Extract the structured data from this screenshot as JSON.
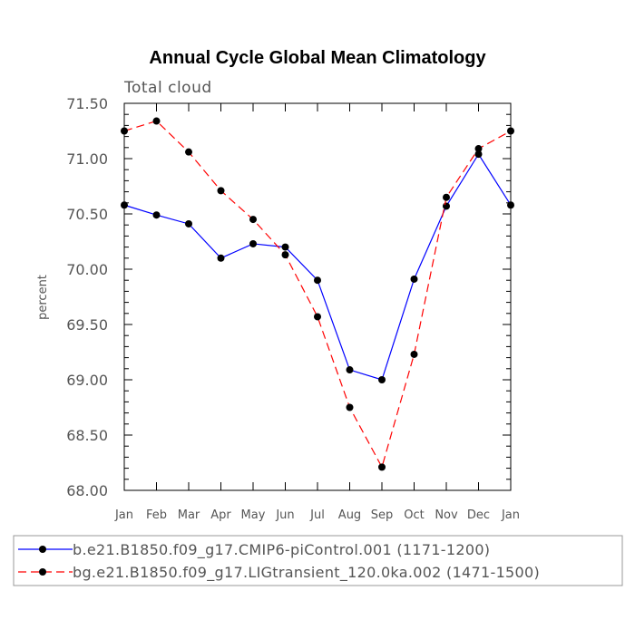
{
  "colors": {
    "series_1": "#0000ff",
    "series_2": "#ff0000",
    "markers": "#000000",
    "axes": "#000000",
    "text": "#555555"
  },
  "chart_data": {
    "type": "line",
    "title": "Annual Cycle Global Mean Climatology",
    "subtitle": "Total cloud",
    "xlabel": "",
    "ylabel": "percent",
    "categories": [
      "Jan",
      "Feb",
      "Mar",
      "Apr",
      "May",
      "Jun",
      "Jul",
      "Aug",
      "Sep",
      "Oct",
      "Nov",
      "Dec",
      "Jan"
    ],
    "ylim": [
      68.0,
      71.5
    ],
    "yticks": [
      "68.00",
      "68.50",
      "69.00",
      "69.50",
      "70.00",
      "70.50",
      "71.00",
      "71.50"
    ],
    "grid": false,
    "legend_position": "bottom",
    "series": [
      {
        "name": "b.e21.B1850.f09_g17.CMIP6-piControl.001 (1171-1200)",
        "line_style": "solid",
        "color": "#0000ff",
        "values": [
          70.58,
          70.49,
          70.41,
          70.1,
          70.23,
          70.2,
          69.9,
          69.09,
          69.0,
          69.91,
          70.57,
          71.04,
          70.58
        ]
      },
      {
        "name": "bg.e21.B1850.f09_g17.LIGtransient_120.0ka.002 (1471-1500)",
        "line_style": "dashed",
        "color": "#ff0000",
        "values": [
          71.25,
          71.34,
          71.06,
          70.71,
          70.45,
          70.13,
          69.57,
          68.75,
          68.21,
          69.23,
          70.65,
          71.09,
          71.25
        ]
      }
    ]
  }
}
